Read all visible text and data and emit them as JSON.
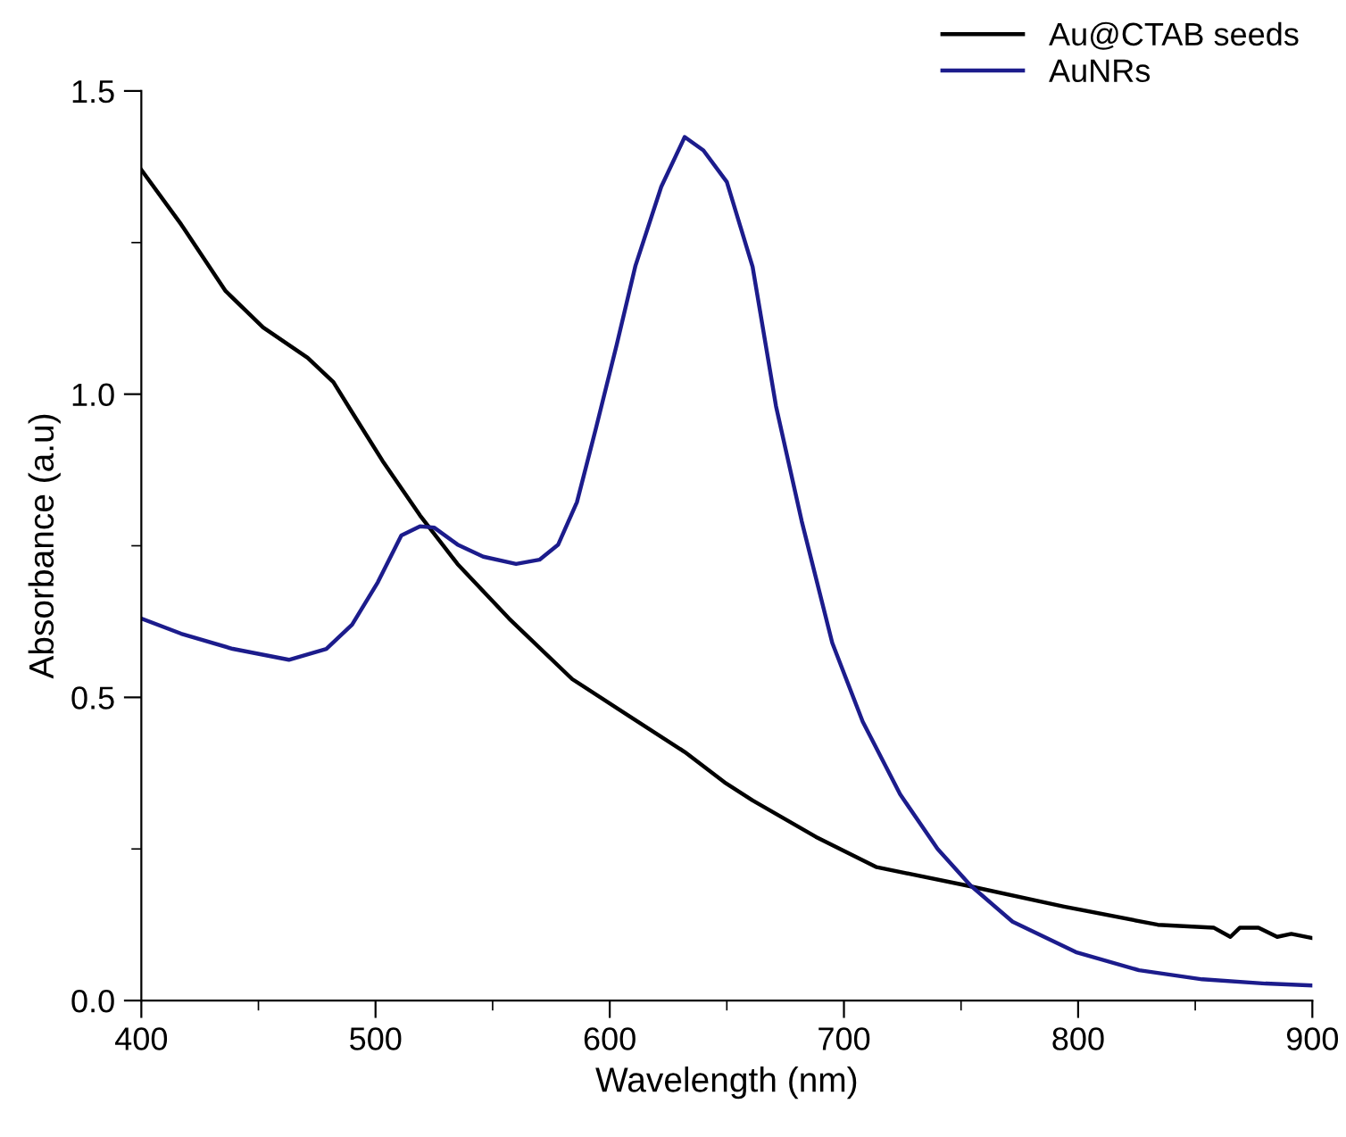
{
  "chart_data": {
    "type": "line",
    "xlabel": "Wavelength (nm)",
    "ylabel": "Absorbance (a.u)",
    "xlim": [
      400,
      900
    ],
    "ylim": [
      0,
      1.5
    ],
    "xticks": [
      400,
      500,
      600,
      700,
      800,
      900
    ],
    "yticks": [
      {
        "value": 0,
        "label": "0.0"
      },
      0.5,
      {
        "value": 1,
        "label": "1.0"
      },
      1.5
    ],
    "grid": false,
    "legend": "top right",
    "marker": "none",
    "line_style": "solid",
    "series": [
      {
        "name": "Au@CTAB seeds",
        "color": "#000000",
        "x": [
          400,
          417,
          436,
          452,
          471,
          482,
          490,
          503,
          519,
          535,
          557,
          584,
          608,
          632,
          649,
          661,
          688,
          714,
          752,
          794,
          834,
          858,
          865,
          869,
          877,
          885,
          891,
          900
        ],
        "values": [
          1.37,
          1.28,
          1.17,
          1.11,
          1.06,
          1.02,
          0.97,
          0.89,
          0.8,
          0.72,
          0.63,
          0.53,
          0.47,
          0.41,
          0.36,
          0.33,
          0.27,
          0.22,
          0.19,
          0.155,
          0.125,
          0.12,
          0.105,
          0.12,
          0.12,
          0.105,
          0.11,
          0.103
        ]
      },
      {
        "name": "AuNRs",
        "color": "#1c1c8c",
        "x": [
          400,
          417,
          439,
          463,
          479,
          490,
          501,
          511,
          519,
          525,
          535,
          546,
          560,
          570,
          578,
          586,
          594,
          603,
          611,
          622,
          632,
          640,
          650,
          661,
          671,
          682,
          695,
          708,
          724,
          740,
          754,
          772,
          799,
          826,
          853,
          880,
          900
        ],
        "values": [
          0.63,
          0.605,
          0.58,
          0.562,
          0.58,
          0.62,
          0.69,
          0.767,
          0.782,
          0.78,
          0.752,
          0.732,
          0.72,
          0.727,
          0.752,
          0.822,
          0.942,
          1.082,
          1.212,
          1.342,
          1.424,
          1.402,
          1.35,
          1.21,
          0.98,
          0.79,
          0.59,
          0.46,
          0.34,
          0.25,
          0.19,
          0.13,
          0.08,
          0.05,
          0.035,
          0.028,
          0.025
        ]
      }
    ]
  }
}
